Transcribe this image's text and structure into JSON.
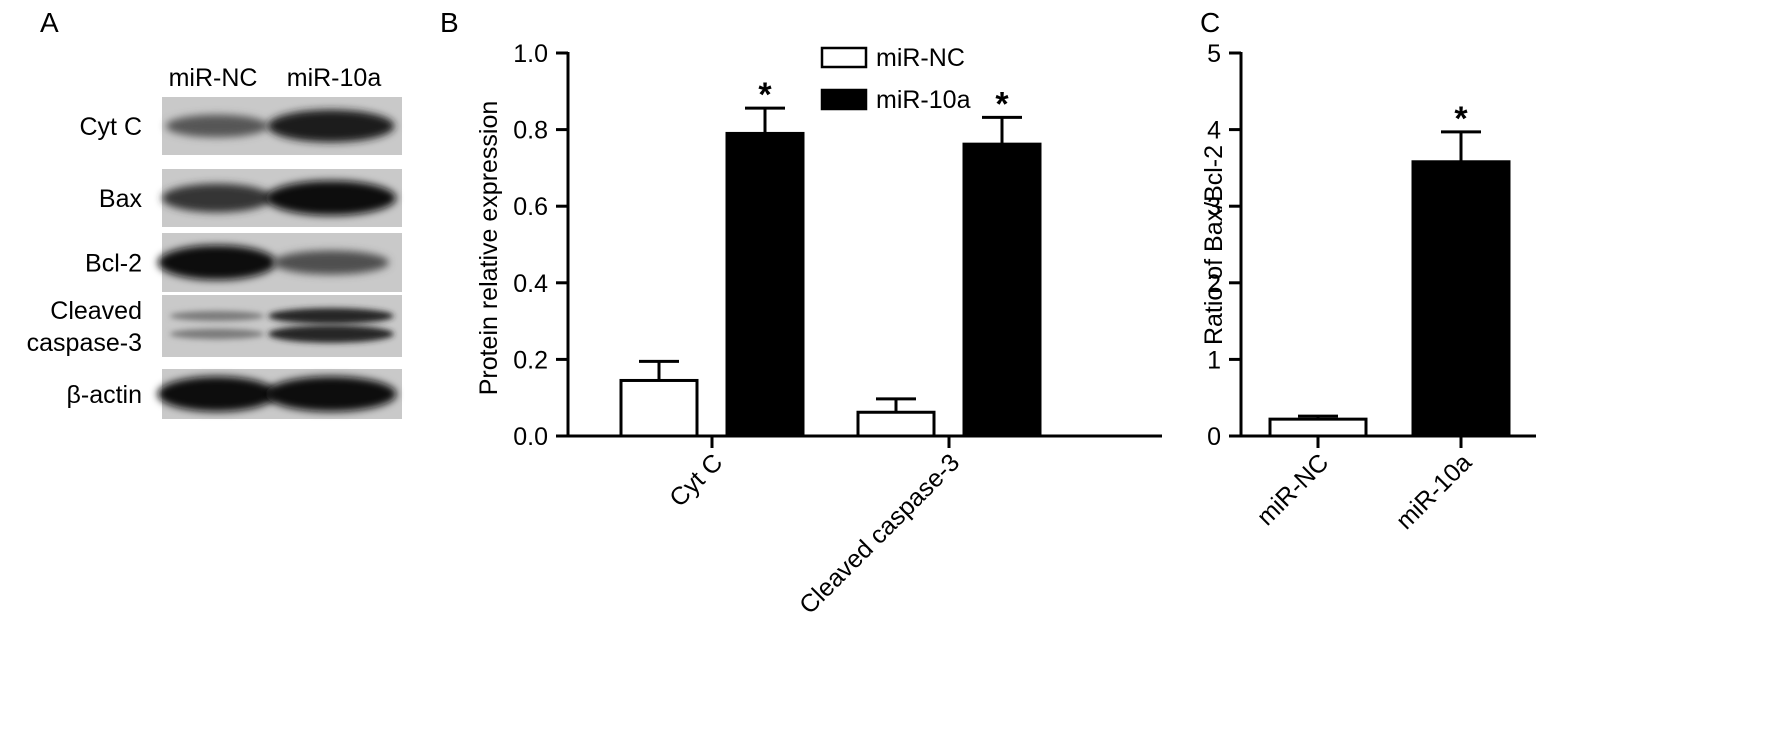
{
  "panels": {
    "a": {
      "letter": "A",
      "lanes": [
        "miR-NC",
        "miR-10a"
      ],
      "rows": [
        {
          "label_lines": [
            "Cyt C"
          ],
          "intensity": [
            0.45,
            0.85
          ],
          "bands": 1
        },
        {
          "label_lines": [
            "Bax"
          ],
          "intensity": [
            0.7,
            0.95
          ],
          "bands": 1
        },
        {
          "label_lines": [
            "Bcl-2"
          ],
          "intensity": [
            0.95,
            0.5
          ],
          "bands": 1
        },
        {
          "label_lines": [
            "Cleaved",
            "caspase-3"
          ],
          "intensity": [
            0.2,
            0.8
          ],
          "bands": 2
        },
        {
          "label_lines": [
            "β-actin"
          ],
          "intensity": [
            0.97,
            0.97
          ],
          "bands": 1
        }
      ]
    },
    "b": {
      "letter": "B"
    },
    "c": {
      "letter": "C"
    }
  },
  "chart_data": [
    {
      "type": "bar",
      "panel": "B",
      "categories": [
        "Cyt C",
        "Cleaved caspase-3"
      ],
      "series": [
        {
          "name": "miR-NC",
          "values": [
            0.145,
            0.062
          ],
          "errors": [
            0.05,
            0.035
          ],
          "fill": "#ffffff"
        },
        {
          "name": "miR-10a",
          "values": [
            0.79,
            0.762
          ],
          "errors": [
            0.066,
            0.07
          ],
          "fill": "#000000"
        }
      ],
      "significance": [
        {
          "series": "miR-10a",
          "category": "Cyt C",
          "label": "*"
        },
        {
          "series": "miR-10a",
          "category": "Cleaved caspase-3",
          "label": "*"
        }
      ],
      "ylabel": "Protein relative expression",
      "xlabel": "",
      "ylim": [
        0,
        1.0
      ],
      "yticks": [
        "0.0",
        "0.2",
        "0.4",
        "0.6",
        "0.8",
        "1.0"
      ],
      "legend": "top-center",
      "grid": false
    },
    {
      "type": "bar",
      "panel": "C",
      "categories": [
        "miR-NC",
        "miR-10a"
      ],
      "values": [
        0.22,
        3.58
      ],
      "errors": [
        0.04,
        0.39
      ],
      "fills": [
        "#ffffff",
        "#000000"
      ],
      "significance": [
        {
          "category": "miR-10a",
          "label": "*"
        }
      ],
      "ylabel": "Ratio of Bax/Bcl-2",
      "xlabel": "",
      "ylim": [
        0,
        5
      ],
      "yticks": [
        "0",
        "1",
        "2",
        "3",
        "4",
        "5"
      ],
      "grid": false
    }
  ]
}
